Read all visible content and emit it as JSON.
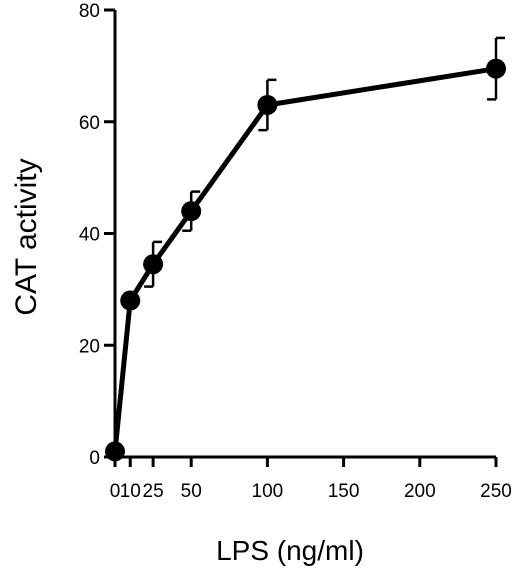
{
  "chart_data": {
    "type": "line",
    "xlabel": "LPS (ng/ml)",
    "ylabel": "CAT activity",
    "xlim": [
      0,
      250
    ],
    "ylim": [
      0,
      80
    ],
    "x_ticks": [
      0,
      10,
      25,
      50,
      100,
      150,
      200,
      250
    ],
    "x_tick_labels": [
      "0",
      "10",
      "25",
      "50",
      "100",
      "150",
      "200",
      "250"
    ],
    "y_ticks": [
      0,
      20,
      40,
      60,
      80
    ],
    "y_tick_labels": [
      "0",
      "20",
      "40",
      "60",
      "80"
    ],
    "grid": false,
    "series": [
      {
        "x": [
          0,
          10,
          25,
          50,
          100,
          250
        ],
        "y": [
          1,
          28,
          34.5,
          44,
          63,
          69.5
        ],
        "error_upper": [
          null,
          null,
          4,
          3.5,
          4.5,
          5.5
        ],
        "error_lower": [
          null,
          null,
          4,
          3.5,
          4.5,
          5.5
        ],
        "color": "#000000"
      }
    ]
  }
}
